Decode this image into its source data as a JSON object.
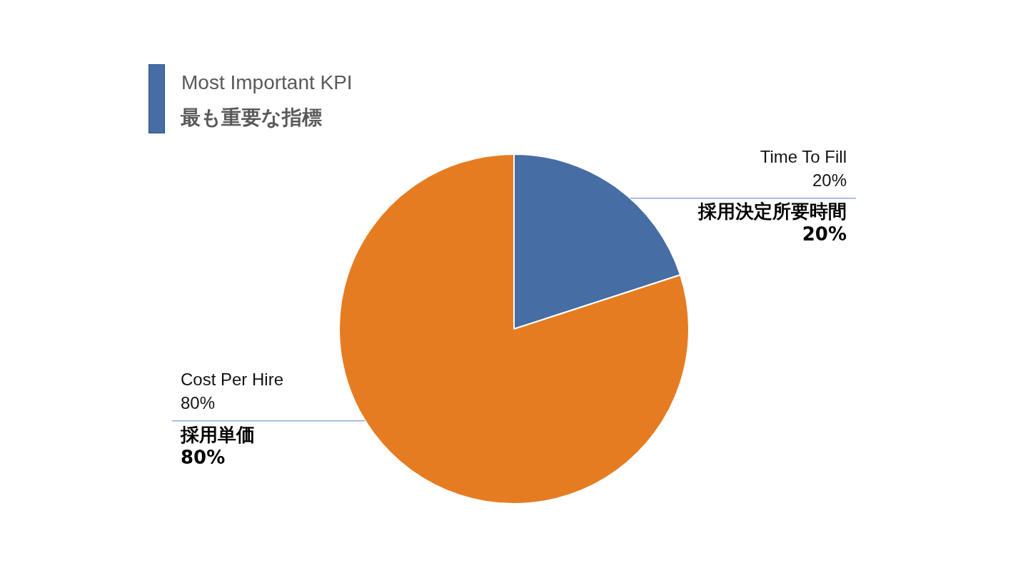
{
  "chart_data": {
    "type": "pie",
    "title": "Most Important KPI",
    "subtitle": "最も重要な指標",
    "categories": [
      "Time To Fill",
      "Cost Per Hire"
    ],
    "values": [
      20,
      80
    ],
    "colors": [
      "#466da4",
      "#e67c22"
    ],
    "value_labels": [
      "20%",
      "80%"
    ],
    "annotations": [
      "採用決定所要時間",
      "採用単価"
    ]
  }
}
